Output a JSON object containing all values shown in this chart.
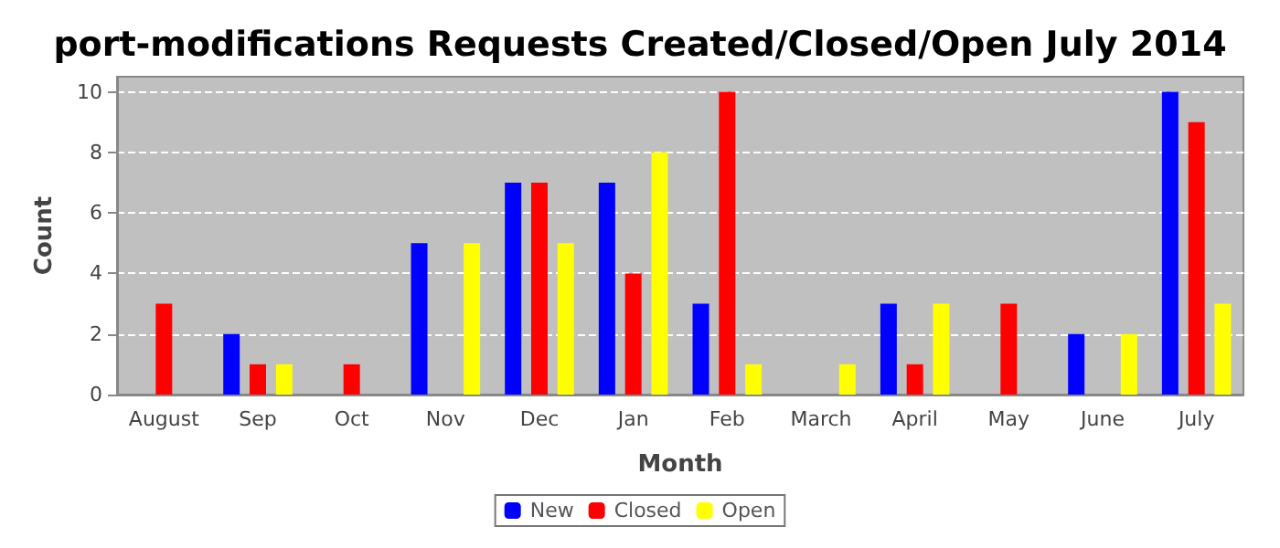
{
  "chart_data": {
    "type": "bar",
    "title": "port-modifications Requests Created/Closed/Open July 2014",
    "xlabel": "Month",
    "ylabel": "Count",
    "categories": [
      "August",
      "Sep",
      "Oct",
      "Nov",
      "Dec",
      "Jan",
      "Feb",
      "March",
      "April",
      "May",
      "June",
      "July"
    ],
    "series": [
      {
        "name": "New",
        "color": "#0000ff",
        "values": [
          0,
          2,
          0,
          5,
          7,
          7,
          3,
          0,
          3,
          0,
          2,
          10
        ]
      },
      {
        "name": "Closed",
        "color": "#ff0000",
        "values": [
          3,
          1,
          1,
          0,
          7,
          4,
          10,
          0,
          1,
          3,
          0,
          9
        ]
      },
      {
        "name": "Open",
        "color": "#ffff00",
        "values": [
          0,
          1,
          0,
          5,
          5,
          8,
          1,
          1,
          3,
          0,
          2,
          3
        ]
      }
    ],
    "ylim": [
      0,
      10.5
    ],
    "yticks": [
      0,
      2,
      4,
      6,
      8,
      10
    ],
    "grid": "y",
    "legend": "bottom"
  }
}
